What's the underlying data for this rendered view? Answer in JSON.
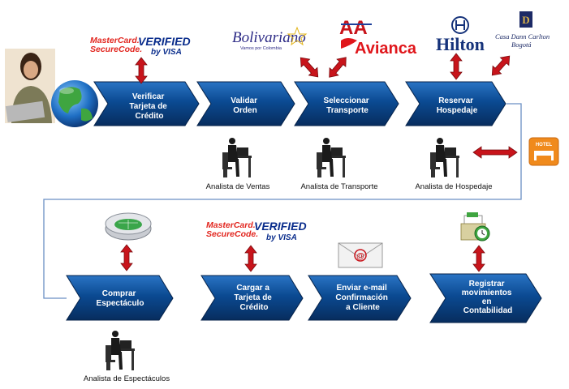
{
  "steps": {
    "verificar": [
      "Verificar",
      "Tarjeta de",
      "Crédito"
    ],
    "validar": [
      "Validar",
      "Orden"
    ],
    "seleccionar": [
      "Seleccionar",
      "Transporte"
    ],
    "reservar": [
      "Reservar",
      "Hospedaje"
    ],
    "comprar": [
      "Comprar",
      "Espectáculo"
    ],
    "cargar": [
      "Cargar a",
      "Tarjeta de",
      "Crédito"
    ],
    "enviar": [
      "Enviar e-mail",
      "Confirmación",
      "a Cliente"
    ],
    "registrar": [
      "Registrar",
      "movimientos",
      "en",
      "Contabilidad"
    ]
  },
  "analysts": {
    "ventas": "Analista de Ventas",
    "transporte": "Analista de Transporte",
    "hospedaje": "Analista de Hospedaje",
    "espectaculos": "Analista de Espectáculos"
  },
  "logos": {
    "mastercard_line1": "MasterCard.",
    "mastercard_line2": "SecureCode.",
    "verified": "VERIFIED",
    "by_visa": "by VISA",
    "bolivariano": "Bolivariano",
    "bolivariano_sub": "Vamos por Colombia",
    "aa": "AA",
    "avianca": "Avianca",
    "hilton": "Hilton",
    "casa_line1": "Casa Dann Carlton",
    "casa_line2": "Bogotá",
    "hotel": "HOTEL"
  },
  "colors": {
    "step_fill": "#0a3f7f",
    "step_highlight": "#1d6cbf",
    "arrow_red": "#c8141b",
    "connector": "#6a8fc4"
  }
}
